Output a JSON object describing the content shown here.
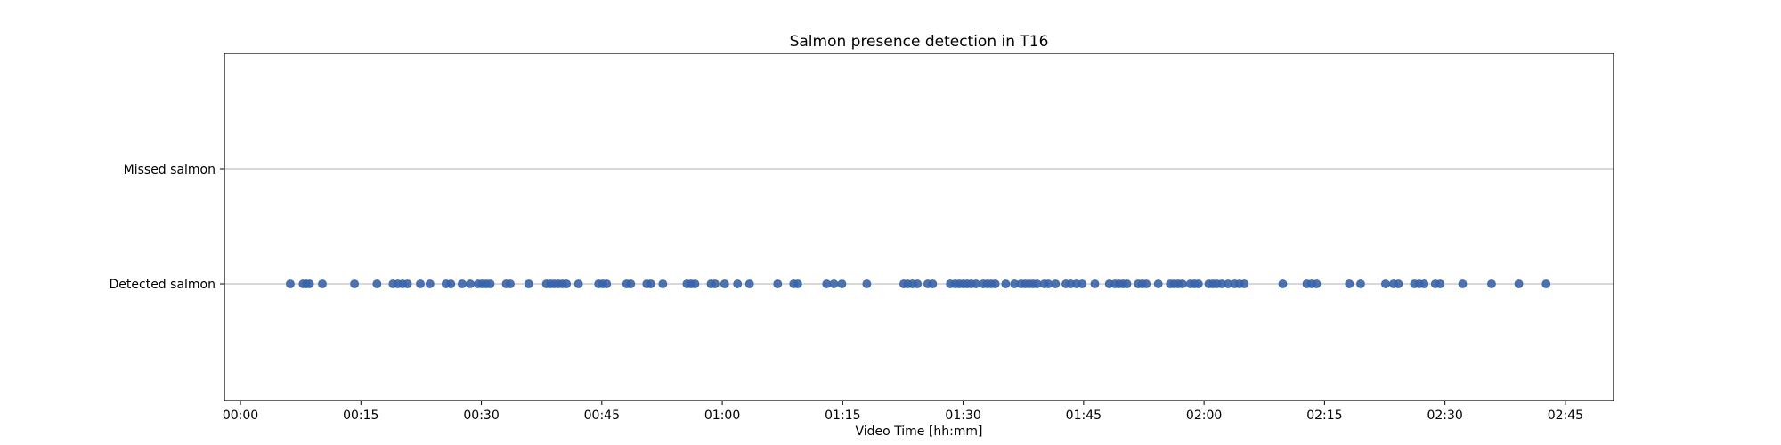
{
  "chart_data": {
    "type": "scatter",
    "title": "Salmon presence detection in T16",
    "xlabel": "Video Time [hh:mm]",
    "ylabel": "",
    "x_unit": "minutes",
    "xlim": [
      -2,
      171
    ],
    "x_ticks": [
      {
        "value": 0,
        "label": "00:00"
      },
      {
        "value": 15,
        "label": "00:15"
      },
      {
        "value": 30,
        "label": "00:30"
      },
      {
        "value": 45,
        "label": "00:45"
      },
      {
        "value": 60,
        "label": "01:00"
      },
      {
        "value": 75,
        "label": "01:15"
      },
      {
        "value": 90,
        "label": "01:30"
      },
      {
        "value": 105,
        "label": "01:45"
      },
      {
        "value": 120,
        "label": "02:00"
      },
      {
        "value": 135,
        "label": "02:15"
      },
      {
        "value": 150,
        "label": "02:30"
      },
      {
        "value": 165,
        "label": "02:45"
      }
    ],
    "categories": [
      "Detected salmon",
      "Missed salmon"
    ],
    "grid": "horizontal",
    "point_color": "#3a64a8",
    "series": [
      {
        "category": "Detected salmon",
        "x": [
          6.2,
          7.8,
          8.2,
          8.6,
          10.2,
          14.2,
          17.0,
          19.0,
          19.6,
          20.2,
          20.8,
          22.4,
          23.6,
          25.6,
          26.2,
          27.6,
          28.6,
          29.6,
          30.1,
          30.6,
          31.1,
          33.1,
          33.6,
          35.9,
          38.1,
          38.6,
          39.1,
          39.6,
          40.1,
          40.6,
          42.1,
          44.6,
          45.1,
          45.6,
          48.1,
          48.6,
          50.6,
          51.1,
          52.6,
          55.6,
          56.1,
          56.6,
          58.6,
          59.1,
          60.3,
          61.9,
          63.4,
          66.9,
          68.9,
          69.4,
          73.0,
          73.9,
          74.9,
          78.0,
          82.6,
          83.1,
          83.7,
          84.3,
          85.6,
          86.2,
          88.4,
          89.0,
          89.5,
          90.0,
          90.5,
          91.0,
          91.6,
          92.5,
          93.0,
          93.5,
          94.0,
          95.3,
          96.4,
          97.2,
          97.7,
          98.2,
          98.7,
          99.2,
          100.1,
          100.6,
          101.5,
          102.8,
          103.4,
          104.1,
          104.8,
          106.4,
          108.2,
          108.9,
          109.4,
          109.9,
          110.4,
          111.8,
          112.3,
          112.8,
          114.3,
          115.8,
          116.3,
          116.8,
          117.3,
          118.3,
          118.8,
          119.3,
          120.6,
          121.1,
          121.6,
          122.2,
          123.0,
          123.8,
          124.4,
          125.0,
          129.8,
          132.8,
          133.4,
          134.0,
          138.1,
          139.5,
          142.6,
          143.6,
          144.2,
          146.2,
          146.8,
          147.4,
          148.8,
          149.4,
          152.2,
          155.8,
          159.2,
          162.6
        ]
      },
      {
        "category": "Missed salmon",
        "x": []
      }
    ]
  }
}
